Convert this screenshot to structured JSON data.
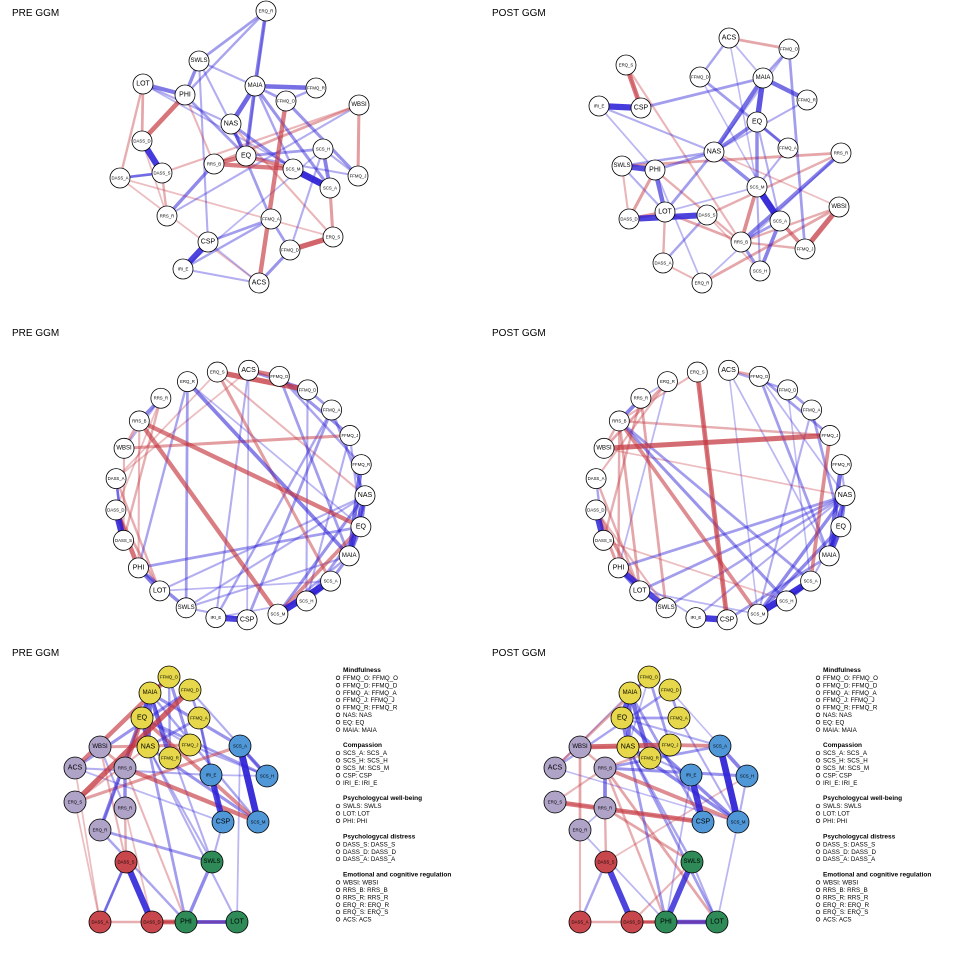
{
  "colors": {
    "positive": "#2b1fd6",
    "negative": "#c4343d",
    "node_fill": "#ffffff",
    "node_stroke": "#000000",
    "groups": {
      "Mindfulness": "#e6d84a",
      "Compassion": "#4f97d6",
      "Psychological well-being": "#2e8b57",
      "Psychological distress": "#c8474d",
      "Emotional and cognitive regulation": "#b0a3c8"
    }
  },
  "nodes": [
    "FFMQ_O",
    "FFMQ_D",
    "FFMQ_A",
    "FFMQ_J",
    "FFMQ_R",
    "NAS",
    "EQ",
    "MAIA",
    "SCS_A",
    "SCS_H",
    "SCS_M",
    "CSP",
    "IRI_E",
    "SWLS",
    "LOT",
    "PHI",
    "DASS_S",
    "DASS_D",
    "DASS_A",
    "WBSI",
    "RRS_B",
    "RRS_R",
    "ERQ_R",
    "ERQ_S",
    "ACS"
  ],
  "panels": [
    {
      "title": "PRE GGM",
      "layout": "spring",
      "variant": "pre"
    },
    {
      "title": "POST GGM",
      "layout": "spring",
      "variant": "post"
    },
    {
      "title": "PRE GGM",
      "layout": "circle",
      "variant": "pre"
    },
    {
      "title": "POST GGM",
      "layout": "circle",
      "variant": "post"
    },
    {
      "title": "PRE GGM",
      "layout": "groups",
      "variant": "pre"
    },
    {
      "title": "POST GGM",
      "layout": "groups",
      "variant": "post"
    }
  ],
  "edges": {
    "pre": [
      [
        "SCS_M",
        "SCS_A",
        0.9
      ],
      [
        "DASS_D",
        "DASS_S",
        0.85
      ],
      [
        "CSP",
        "IRI_E",
        0.8
      ],
      [
        "NAS",
        "MAIA",
        0.6
      ],
      [
        "MAIA",
        "FFMQ_R",
        0.55
      ],
      [
        "EQ",
        "NAS",
        0.45
      ],
      [
        "EQ",
        "MAIA",
        0.45
      ],
      [
        "FFMQ_A",
        "FFMQ_D",
        0.3
      ],
      [
        "RRS_B",
        "RRS_R",
        0.4
      ],
      [
        "SCS_H",
        "SCS_A",
        0.45
      ],
      [
        "PHI",
        "LOT",
        0.5
      ],
      [
        "PHI",
        "SWLS",
        0.4
      ],
      [
        "ERQ_S",
        "FFMQ_D",
        -0.7
      ],
      [
        "DASS_D",
        "PHI",
        -0.6
      ],
      [
        "RRS_B",
        "EQ",
        -0.55
      ],
      [
        "EQ",
        "SCS_M",
        -0.45
      ],
      [
        "WBSI",
        "FFMQ_J",
        -0.35
      ],
      [
        "LOT",
        "DASS_D",
        -0.3
      ],
      [
        "ACS",
        "FFMQ_O",
        -0.55
      ],
      [
        "ERQ_R",
        "MAIA",
        0.45
      ],
      [
        "SCS_A",
        "ERQ_S",
        -0.35
      ],
      [
        "SWLS",
        "ERQ_R",
        0.3
      ],
      [
        "DASS_A",
        "DASS_S",
        0.3
      ],
      [
        "NAS",
        "SCS_M",
        0.35
      ],
      [
        "FFMQ_J",
        "FFMQ_O",
        0.35
      ],
      [
        "LOT",
        "DASS_A",
        -0.25
      ],
      [
        "CSP",
        "FFMQ_A",
        0.3
      ],
      [
        "WBSI",
        "RRS_B",
        -0.3
      ],
      [
        "FFMQ_D",
        "ACS",
        0.35
      ],
      [
        "RRS_R",
        "DASS_S",
        -0.25
      ],
      [
        "MAIA",
        "FFMQ_O",
        0.3
      ],
      [
        "RRS_B",
        "SCS_M",
        -0.55
      ],
      [
        "DASS_S",
        "DASS_A",
        0.25
      ],
      [
        "EQ",
        "SCS_H",
        0.3
      ],
      [
        "PHI",
        "EQ",
        0.3
      ],
      [
        "SCS_A",
        "MAIA",
        0.35
      ],
      [
        "NAS",
        "FFMQ_A",
        0.3
      ],
      [
        "FFMQ_O",
        "FFMQ_R",
        0.25
      ],
      [
        "ERQ_R",
        "PHI",
        0.25
      ],
      [
        "WBSI",
        "DASS_S",
        -0.2
      ],
      [
        "CSP",
        "SWLS",
        0.2
      ],
      [
        "IRI_E",
        "FFMQ_A",
        0.25
      ],
      [
        "ACS",
        "IRI_E",
        0.2
      ],
      [
        "DASS_A",
        "ERQ_S",
        -0.15
      ],
      [
        "LOT",
        "NAS",
        0.2
      ],
      [
        "SWLS",
        "NAS",
        0.2
      ],
      [
        "RRS_R",
        "WBSI",
        0.2
      ],
      [
        "FFMQ_J",
        "SCS_H",
        0.2
      ],
      [
        "ERQ_S",
        "NAS",
        -0.2
      ],
      [
        "ACS",
        "DASS_A",
        -0.15
      ],
      [
        "FFMQ_D",
        "SCS_H",
        0.2
      ],
      [
        "MAIA",
        "SCS_M",
        0.25
      ],
      [
        "EQ",
        "FFMQ_J",
        0.2
      ],
      [
        "PHI",
        "RRS_B",
        -0.2
      ],
      [
        "SWLS",
        "MAIA",
        0.2
      ],
      [
        "DASS_D",
        "RRS_R",
        -0.15
      ],
      [
        "LOT",
        "SCS_A",
        0.15
      ],
      [
        "ERQ_R",
        "EQ",
        0.15
      ],
      [
        "CSP",
        "ACS",
        0.15
      ],
      [
        "IRI_E",
        "SCS_H",
        0.15
      ]
    ],
    "post": [
      [
        "SCS_M",
        "SCS_A",
        0.9
      ],
      [
        "DASS_D",
        "DASS_S",
        0.8
      ],
      [
        "CSP",
        "IRI_E",
        0.85
      ],
      [
        "NAS",
        "MAIA",
        0.55
      ],
      [
        "MAIA",
        "FFMQ_R",
        0.55
      ],
      [
        "EQ",
        "NAS",
        0.45
      ],
      [
        "EQ",
        "MAIA",
        0.7
      ],
      [
        "FFMQ_A",
        "FFMQ_D",
        0.3
      ],
      [
        "RRS_B",
        "RRS_R",
        0.45
      ],
      [
        "SCS_H",
        "SCS_A",
        0.45
      ],
      [
        "PHI",
        "LOT",
        0.55
      ],
      [
        "PHI",
        "SWLS",
        0.75
      ],
      [
        "ERQ_S",
        "CSP",
        -0.6
      ],
      [
        "WBSI",
        "FFMQ_J",
        -0.65
      ],
      [
        "LOT",
        "DASS_D",
        -0.4
      ],
      [
        "RRS_B",
        "SCS_M",
        -0.45
      ],
      [
        "PHI",
        "DASS_D",
        -0.35
      ],
      [
        "EQ",
        "SCS_M",
        0.4
      ],
      [
        "SCS_A",
        "FFMQ_J",
        -0.45
      ],
      [
        "ERQ_R",
        "WBSI",
        -0.3
      ],
      [
        "NAS",
        "SCS_M",
        0.4
      ],
      [
        "SWLS",
        "RRS_R",
        -0.3
      ],
      [
        "DASS_A",
        "DASS_S",
        0.25
      ],
      [
        "ACS",
        "FFMQ_O",
        -0.3
      ],
      [
        "FFMQ_J",
        "FFMQ_O",
        0.3
      ],
      [
        "SCS_H",
        "RRS_B",
        0.35
      ],
      [
        "LOT",
        "RRS_B",
        -0.3
      ],
      [
        "WBSI",
        "RRS_B",
        -0.25
      ],
      [
        "FFMQ_D",
        "ACS",
        0.25
      ],
      [
        "RRS_R",
        "DASS_S",
        -0.25
      ],
      [
        "MAIA",
        "FFMQ_O",
        0.3
      ],
      [
        "NAS",
        "PHI",
        0.3
      ],
      [
        "CSP",
        "MAIA",
        0.3
      ],
      [
        "EQ",
        "FFMQ_A",
        0.3
      ],
      [
        "SCS_A",
        "RRS_B",
        0.3
      ],
      [
        "LOT",
        "NAS",
        0.3
      ],
      [
        "SWLS",
        "NAS",
        0.25
      ],
      [
        "DASS_A",
        "LOT",
        -0.25
      ],
      [
        "ERQ_S",
        "RRS_B",
        -0.2
      ],
      [
        "FFMQ_R",
        "NAS",
        0.2
      ],
      [
        "PHI",
        "RRS_B",
        -0.25
      ],
      [
        "SCS_H",
        "SCS_M",
        0.2
      ],
      [
        "ERQ_R",
        "DASS_A",
        -0.2
      ],
      [
        "IRI_E",
        "NAS",
        0.2
      ],
      [
        "FFMQ_J",
        "RRS_B",
        -0.25
      ],
      [
        "SWLS",
        "LOT",
        0.2
      ],
      [
        "CSP",
        "ERQ_S",
        -0.15
      ],
      [
        "ACS",
        "MAIA",
        0.15
      ],
      [
        "DASS_D",
        "SWLS",
        -0.2
      ],
      [
        "FFMQ_A",
        "SCS_M",
        0.2
      ],
      [
        "WBSI",
        "NAS",
        -0.15
      ],
      [
        "ERQ_R",
        "PHI",
        0.15
      ],
      [
        "EQ",
        "SCS_A",
        0.2
      ],
      [
        "DASS_S",
        "SCS_H",
        -0.15
      ],
      [
        "FFMQ_O",
        "NAS",
        0.15
      ],
      [
        "LOT",
        "SCS_M",
        0.15
      ],
      [
        "IRI_E",
        "PHI",
        0.15
      ],
      [
        "RRS_R",
        "ERQ_R",
        0.15
      ],
      [
        "ACS",
        "SCS_M",
        0.12
      ],
      [
        "FFMQ_D",
        "SCS_A",
        0.12
      ]
    ]
  },
  "legend": [
    {
      "title": "Mindfulness",
      "items": [
        "FFMQ_O: FFMQ_O",
        "FFMQ_D: FFMQ_D",
        "FFMQ_A: FFMQ_A",
        "FFMQ_J: FFMQ_J",
        "FFMQ_R: FFMQ_R",
        "NAS: NAS",
        "EQ: EQ",
        "MAIA: MAIA"
      ]
    },
    {
      "title": "Compassion",
      "items": [
        "SCS_A: SCS_A",
        "SCS_H: SCS_H",
        "SCS_M: SCS_M",
        "CSP: CSP",
        "IRI_E: IRI_E"
      ]
    },
    {
      "title": "Psychologycal well-being",
      "items": [
        "SWLS: SWLS",
        "LOT: LOT",
        "PHI: PHI"
      ]
    },
    {
      "title": "Psychologycal distress",
      "items": [
        "DASS_S: DASS_S",
        "DASS_D: DASS_D",
        "DASS_A: DASS_A"
      ]
    },
    {
      "title": "Emotional and cognitive regulation",
      "items": [
        "WBSI: WBSI",
        "RRS_B: RRS_B",
        "RRS_R: RRS_R",
        "ERQ_R: ERQ_R",
        "ERQ_S: ERQ_S",
        "ACS: ACS"
      ]
    }
  ]
}
